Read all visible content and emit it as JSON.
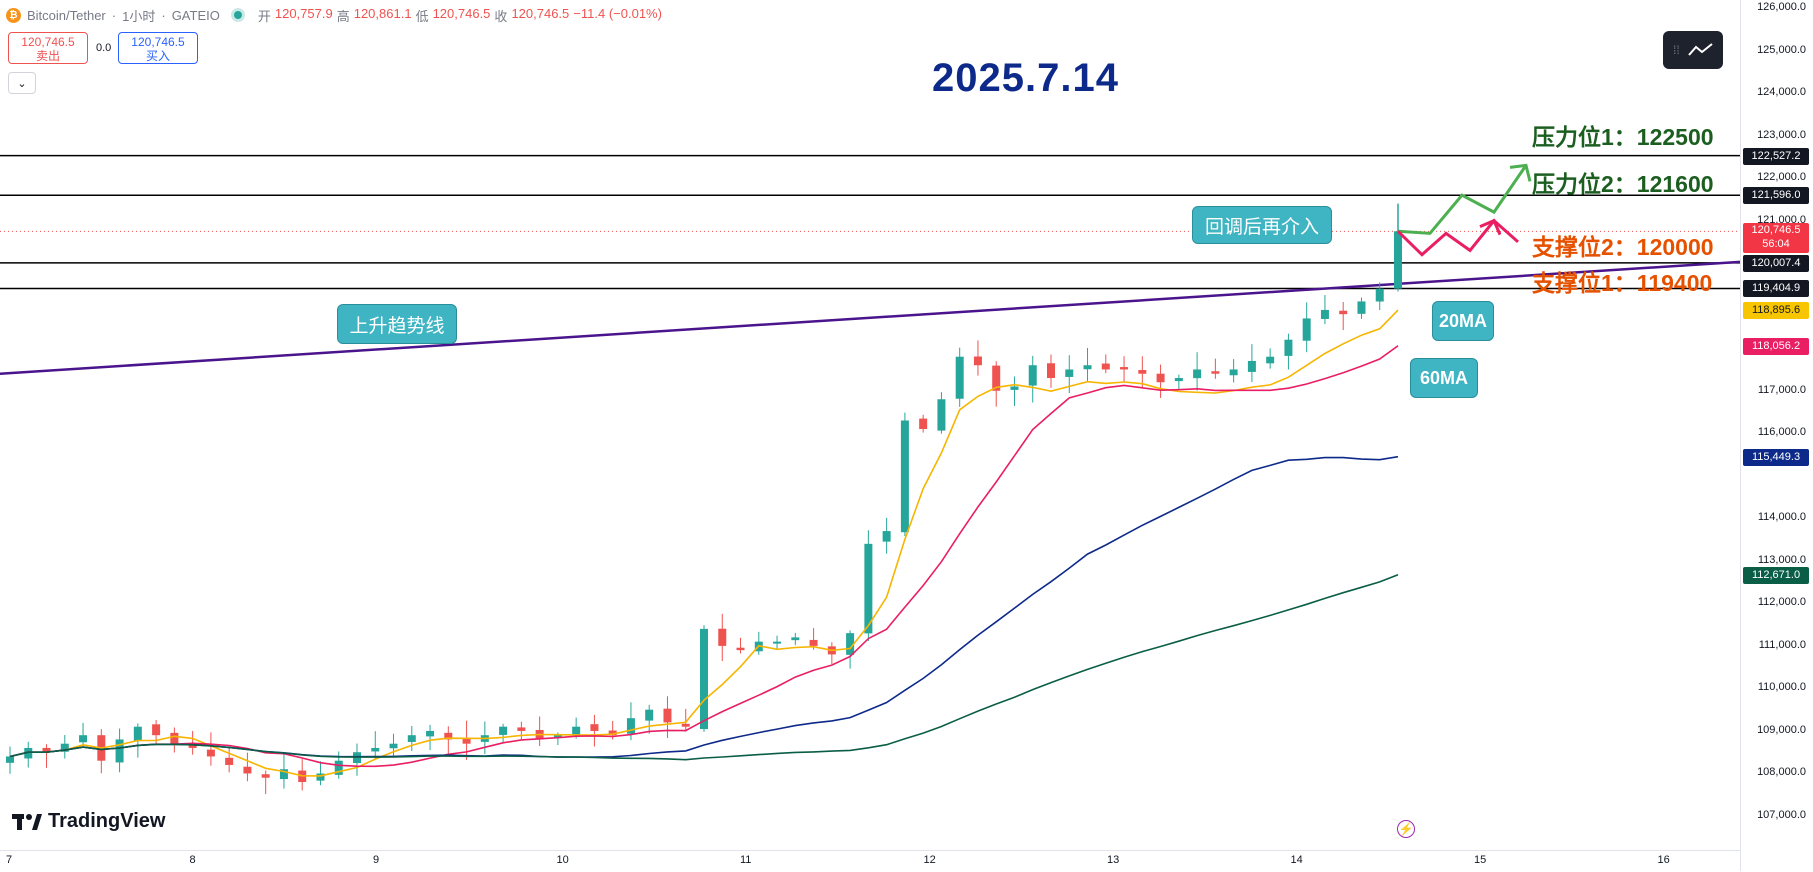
{
  "header": {
    "symbol": "Bitcoin/Tether",
    "interval": "1小时",
    "exchange": "GATEIO",
    "separator": "·",
    "open_label": "开",
    "open": "120,757.9",
    "high_label": "高",
    "high": "120,861.1",
    "low_label": "低",
    "low": "120,746.5",
    "close_label": "收",
    "close": "120,746.5",
    "change": "−11.4 (−0.01%)"
  },
  "trade": {
    "sell_price": "120,746.5",
    "sell_label": "卖出",
    "spread": "0.0",
    "buy_price": "120,746.5",
    "buy_label": "买入"
  },
  "title": "2025.7.14",
  "levels": {
    "resistance1": "压力位1：122500",
    "resistance2": "压力位2：121600",
    "support2": "支撑位2：120000",
    "support1": "支撑位1：119400"
  },
  "callouts": {
    "reentry": "回调后再介入",
    "trendline": "上升趋势线",
    "ma20": "20MA",
    "ma60": "60MA"
  },
  "price_axis": {
    "ticks": [
      "126,000.0",
      "125,000.0",
      "124,000.0",
      "123,000.0",
      "122,000.0",
      "121,000.0",
      "117,000.0",
      "116,000.0",
      "114,000.0",
      "113,000.0",
      "112,000.0",
      "111,000.0",
      "110,000.0",
      "109,000.0",
      "108,000.0",
      "107,000.0"
    ],
    "labels": [
      {
        "text": "122,527.2",
        "color": "#131722"
      },
      {
        "text": "121,596.0",
        "color": "#131722"
      },
      {
        "text": "120,746.5",
        "sub": "56:04",
        "color": "#f23645"
      },
      {
        "text": "120,007.4",
        "color": "#131722"
      },
      {
        "text": "119,404.9",
        "color": "#131722"
      },
      {
        "text": "118,895.6",
        "color": "#f7c600"
      },
      {
        "text": "118,056.2",
        "color": "#e91e63"
      },
      {
        "text": "115,449.3",
        "color": "#0d2a8a"
      },
      {
        "text": "112,671.0",
        "color": "#0b5e46"
      }
    ]
  },
  "time_axis": {
    "ticks": [
      "7",
      "8",
      "9",
      "10",
      "11",
      "12",
      "13",
      "14",
      "15",
      "16"
    ]
  },
  "brand": "TradingView",
  "chart_data": {
    "type": "candlestick",
    "y_range": [
      106500,
      126200
    ],
    "x_days": [
      "7",
      "8",
      "9",
      "10",
      "11",
      "12",
      "13",
      "14",
      "15",
      "16"
    ],
    "horizontal_levels": [
      122527.2,
      121596.0,
      120007.4,
      119404.9
    ],
    "current_price": 120746.5,
    "trendline": {
      "name": "上升趋势线",
      "from": 117400,
      "to": 120030
    },
    "moving_averages": [
      {
        "name": "20MA",
        "color": "#f7b500",
        "last": 118895.6
      },
      {
        "name": "60MA",
        "color": "#e91e63",
        "last": 118056.2
      },
      {
        "name": "",
        "color": "#0d2a8a",
        "last": 115449.3
      },
      {
        "name": "",
        "color": "#0b5e46",
        "last": 112671.0
      }
    ],
    "closes": [
      108400,
      108600,
      108500,
      108700,
      108900,
      108300,
      108800,
      109100,
      108900,
      108700,
      108600,
      108400,
      108200,
      108000,
      107900,
      108100,
      107800,
      108000,
      108300,
      108500,
      108600,
      108700,
      108900,
      109000,
      108800,
      108700,
      108900,
      109100,
      109000,
      108800,
      108900,
      109100,
      109000,
      108900,
      109300,
      109500,
      109200,
      109100,
      111400,
      111000,
      110900,
      111100,
      111100,
      111200,
      111000,
      110800,
      111300,
      113400,
      113700,
      116300,
      116100,
      116800,
      117800,
      117600,
      117000,
      117100,
      117600,
      117300,
      117500,
      117600,
      117500,
      117500,
      117400,
      117200,
      117300,
      117500,
      117400,
      117500,
      117700,
      117800,
      118200,
      118700,
      118900,
      118800,
      119100,
      119400,
      120750
    ],
    "forecast_up": [
      120750,
      120700,
      121600,
      121200,
      122300
    ],
    "forecast_down": [
      120750,
      120200,
      120700,
      120300,
      121000,
      120500
    ]
  },
  "colors": {
    "up": "#26a69a",
    "down": "#ef5350",
    "trendline": "#4a148c",
    "level_line": "#000000",
    "forecast_up": "#4caf50",
    "forecast_down": "#e91e63"
  }
}
